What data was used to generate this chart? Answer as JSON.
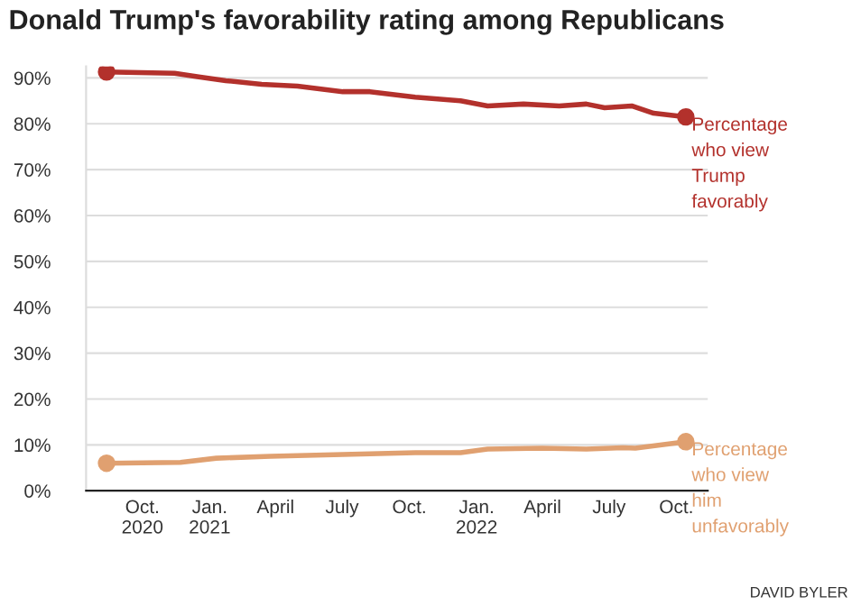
{
  "chart_data": {
    "type": "line",
    "title": "Donald Trump's favorability rating among Republicans",
    "annotations": [
      "DAVID BYLER"
    ],
    "series": [
      {
        "name": "Percentage\nwho view\nTrump\nfavorably",
        "color": "#b3312c",
        "x": [
          "2020-08-13",
          "2020-11-14",
          "2020-12-17",
          "2021-01-23",
          "2021-03-13",
          "2021-05-01",
          "2021-07-02",
          "2021-08-08",
          "2021-10-09",
          "2021-12-10",
          "2022-01-16",
          "2022-03-06",
          "2022-04-24",
          "2022-05-31",
          "2022-06-25",
          "2022-08-01",
          "2022-08-31",
          "2022-10-14"
        ],
        "values": [
          91.3,
          91,
          90.2,
          89.4,
          88.6,
          88.2,
          87,
          87,
          85.8,
          85,
          83.9,
          84.3,
          83.9,
          84.3,
          83.5,
          83.9,
          82.3,
          81.5
        ]
      },
      {
        "name": "Percentage\nwho view\nhim\nunfavorably",
        "color": "#e0a070",
        "x": [
          "2020-08-13",
          "2020-11-22",
          "2021-01-10",
          "2021-03-25",
          "2021-07-02",
          "2021-10-09",
          "2021-12-10",
          "2022-01-16",
          "2022-03-31",
          "2022-05-31",
          "2022-07-20",
          "2022-08-06",
          "2022-10-14"
        ],
        "values": [
          6.0,
          6.2,
          7.1,
          7.5,
          7.9,
          8.3,
          8.3,
          9.1,
          9.3,
          9.1,
          9.4,
          9.3,
          10.7
        ]
      }
    ],
    "xlim": [
      "2020-07-16",
      "2022-11-13"
    ],
    "xticks": [
      {
        "value": "2020-10-01",
        "label": "Oct.\n2020"
      },
      {
        "value": "2021-01-01",
        "label": "Jan.\n2021"
      },
      {
        "value": "2021-04-01",
        "label": "April"
      },
      {
        "value": "2021-07-01",
        "label": "July"
      },
      {
        "value": "2021-10-01",
        "label": "Oct."
      },
      {
        "value": "2022-01-01",
        "label": "Jan.\n2022"
      },
      {
        "value": "2022-04-01",
        "label": "April"
      },
      {
        "value": "2022-07-01",
        "label": "July"
      },
      {
        "value": "2022-10-01",
        "label": "Oct."
      }
    ],
    "ylim": [
      0,
      92.5
    ],
    "yticks": [
      {
        "value": 0,
        "label": "0%"
      },
      {
        "value": 10,
        "label": "10%"
      },
      {
        "value": 20,
        "label": "20%"
      },
      {
        "value": 30,
        "label": "30%"
      },
      {
        "value": 40,
        "label": "40%"
      },
      {
        "value": 50,
        "label": "50%"
      },
      {
        "value": 60,
        "label": "60%"
      },
      {
        "value": 70,
        "label": "70%"
      },
      {
        "value": 80,
        "label": "80%"
      },
      {
        "value": 90,
        "label": "90%"
      }
    ],
    "grid": "y",
    "line_style": "solid",
    "legend": false
  }
}
